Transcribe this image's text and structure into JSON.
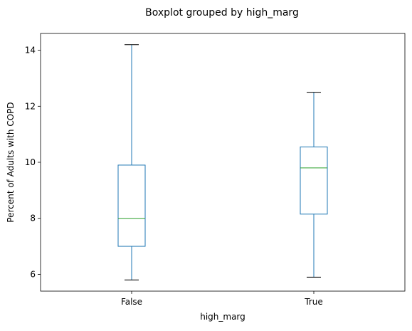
{
  "chart_data": {
    "type": "box",
    "title": "Boxplot grouped by high_marg",
    "xlabel": "high_marg",
    "ylabel": "Percent of Adults with COPD",
    "categories": [
      "False",
      "True"
    ],
    "ylim": [
      5.4,
      14.6
    ],
    "yticks": [
      6,
      8,
      10,
      12,
      14
    ],
    "grid": false,
    "box_color": "#1f77b4",
    "median_color": "#2ca02c",
    "whisker_color": "#1f77b4",
    "cap_color": "#000000",
    "boxes": [
      {
        "category": "False",
        "whislo": 5.8,
        "q1": 7.0,
        "med": 8.0,
        "q3": 9.9,
        "whishi": 14.2
      },
      {
        "category": "True",
        "whislo": 5.9,
        "q1": 8.15,
        "med": 9.8,
        "q3": 10.55,
        "whishi": 12.5
      }
    ]
  }
}
